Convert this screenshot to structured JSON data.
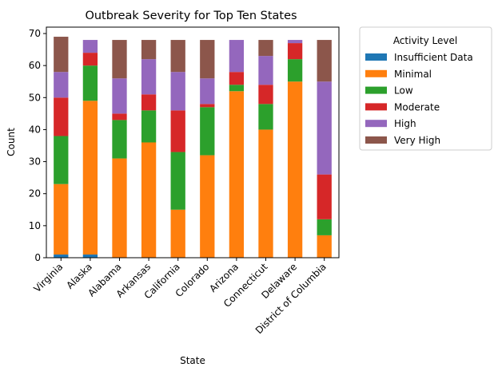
{
  "chart_data": {
    "type": "bar",
    "stacked": true,
    "title": "Outbreak Severity for Top Ten States",
    "xlabel": "State",
    "ylabel": "Count",
    "ylim": [
      0,
      72
    ],
    "yticks": [
      0,
      10,
      20,
      30,
      40,
      50,
      60,
      70
    ],
    "categories": [
      "Virginia",
      "Alaska",
      "Alabama",
      "Arkansas",
      "California",
      "Colorado",
      "Arizona",
      "Connecticut",
      "Delaware",
      "District of Columbia"
    ],
    "legend": {
      "title": "Activity Level",
      "placement": "outside-right"
    },
    "series": [
      {
        "name": "Insufficient Data",
        "color": "#1f77b4",
        "values": [
          1,
          1,
          0,
          0,
          0,
          0,
          0,
          0,
          0,
          0
        ]
      },
      {
        "name": "Minimal",
        "color": "#ff7f0e",
        "values": [
          22,
          48,
          31,
          36,
          15,
          32,
          52,
          40,
          55,
          7
        ]
      },
      {
        "name": "Low",
        "color": "#2ca02c",
        "values": [
          15,
          11,
          12,
          10,
          18,
          15,
          2,
          8,
          7,
          5
        ]
      },
      {
        "name": "Moderate",
        "color": "#d62728",
        "values": [
          12,
          4,
          2,
          5,
          13,
          1,
          4,
          6,
          5,
          14
        ]
      },
      {
        "name": "High",
        "color": "#9467bd",
        "values": [
          8,
          4,
          11,
          11,
          12,
          8,
          10,
          9,
          1,
          29
        ]
      },
      {
        "name": "Very High",
        "color": "#8c564b",
        "values": [
          11,
          0,
          12,
          6,
          10,
          12,
          0,
          5,
          0,
          13
        ]
      }
    ]
  }
}
